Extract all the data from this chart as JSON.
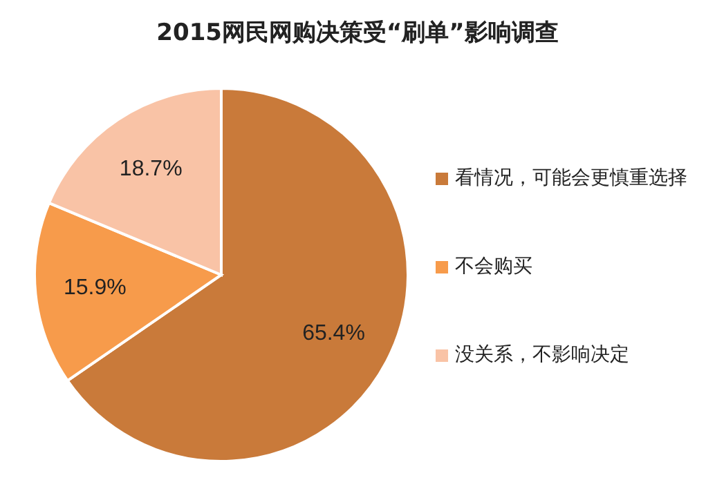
{
  "chart_data": {
    "type": "pie",
    "title": "2015网民网购决策受“刷单”影响调查",
    "categories": [
      "看情况，可能会更慎重选择",
      "不会购买",
      "没关系，不影响决定"
    ],
    "values": [
      65.4,
      15.9,
      18.7
    ],
    "colors": [
      "#c97a3a",
      "#f79b4b",
      "#f9c3a6"
    ],
    "value_labels": [
      "65.4%",
      "15.9%",
      "18.7%"
    ],
    "legend": "right"
  }
}
